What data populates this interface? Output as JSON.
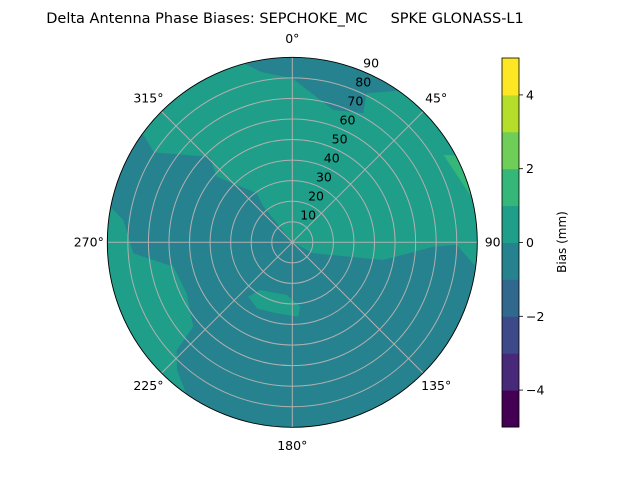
{
  "chart_data": {
    "type": "polar-contour",
    "title": "Delta Antenna Phase Biases: SEPCHOKE_MC     SPKE GLONASS-L1",
    "angle_direction": "clockwise",
    "zero_location": "top",
    "angle_ticks": [
      "0°",
      "45°",
      "90°",
      "135°",
      "180°",
      "225°",
      "270°",
      "315°"
    ],
    "angle_tick_values": [
      0,
      45,
      90,
      135,
      180,
      225,
      270,
      315
    ],
    "radial_ticks": [
      "10",
      "20",
      "30",
      "40",
      "50",
      "60",
      "70",
      "80",
      "90"
    ],
    "radial_tick_values": [
      10,
      20,
      30,
      40,
      50,
      60,
      70,
      80,
      90
    ],
    "rlim": [
      0,
      90
    ],
    "grid": true,
    "colorbar": {
      "label": "Bias (mm)",
      "levels": [
        -5,
        -4,
        -3,
        -2,
        -1,
        0,
        1,
        2,
        3,
        4,
        5
      ],
      "colors": [
        "#440154",
        "#482878",
        "#3e4989",
        "#31688e",
        "#26828e",
        "#1f9e89",
        "#35b779",
        "#6ece58",
        "#b5de2b",
        "#fde725"
      ],
      "ticks": [
        "−4",
        "−2",
        "0",
        "2",
        "4"
      ],
      "tick_values": [
        -4,
        -2,
        0,
        2,
        4
      ],
      "colormap": "viridis"
    },
    "background_level": [
      -1,
      0
    ],
    "regions": [
      {
        "level": [
          0,
          1
        ],
        "points": [
          [
            0,
            0
          ],
          [
            117.6,
            11.5
          ],
          [
            101,
            45.1
          ],
          [
            91.8,
            68.6
          ],
          [
            90.9,
            80
          ],
          [
            97.6,
            90
          ],
          [
            35,
            90
          ],
          [
            26.5,
            81
          ],
          [
            28.8,
            71.7
          ],
          [
            17.2,
            67.4
          ],
          [
            0,
            79.8
          ],
          [
            350,
            84
          ],
          [
            345,
            90
          ],
          [
            306,
            90
          ],
          [
            303,
            80.3
          ],
          [
            316,
            57.8
          ],
          [
            311,
            48.7
          ],
          [
            324,
            29.5
          ],
          [
            321,
            22.4
          ]
        ]
      },
      {
        "level": [
          0,
          1
        ],
        "points": [
          [
            281,
            90
          ],
          [
            277.5,
            82.9
          ],
          [
            266,
            77.5
          ],
          [
            258.4,
            59
          ],
          [
            244,
            57.1
          ],
          [
            229.6,
            63.3
          ],
          [
            227,
            76.9
          ],
          [
            222,
            83.8
          ],
          [
            215,
            90
          ]
        ]
      },
      {
        "level": [
          0,
          1
        ],
        "points": [
          [
            219,
            34
          ],
          [
            214,
            28
          ],
          [
            186,
            25.8
          ],
          [
            173,
            31.5
          ],
          [
            175.4,
            36.3
          ],
          [
            192.4,
            35.4
          ],
          [
            208,
            36.5
          ]
        ]
      },
      {
        "level": [
          1,
          2
        ],
        "points": [
          [
            60,
            85
          ],
          [
            62,
            90
          ],
          [
            76,
            90
          ],
          [
            66,
            86
          ]
        ]
      }
    ]
  }
}
